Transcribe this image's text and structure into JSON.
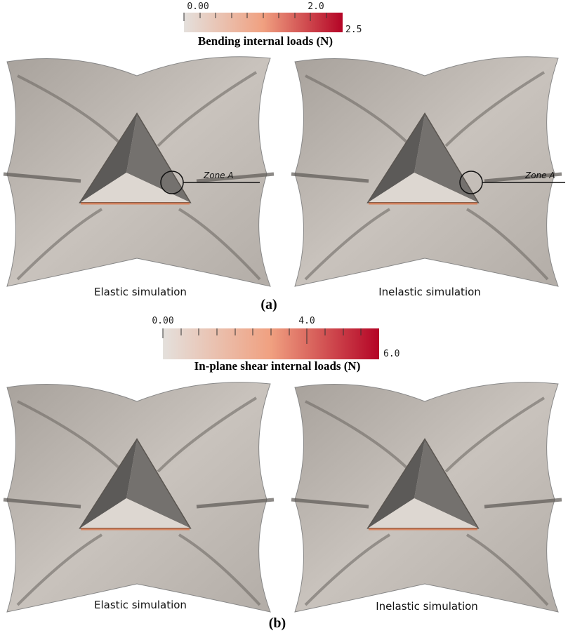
{
  "panels": [
    {
      "colorbar": {
        "ticks": [
          "0.00",
          "2.0",
          "2.5"
        ],
        "title": "Bending internal loads (N)"
      },
      "images": [
        {
          "caption": "Elastic simulation",
          "annotation": "Zone A"
        },
        {
          "caption": "Inelastic simulation",
          "annotation": "Zone A"
        }
      ],
      "label": "(a)"
    },
    {
      "colorbar": {
        "ticks": [
          "0.00",
          "4.0",
          "6.0"
        ],
        "title": "In-plane shear internal loads (N)"
      },
      "images": [
        {
          "caption": "Elastic simulation"
        },
        {
          "caption": "Inelastic simulation"
        }
      ],
      "label": "(b)"
    }
  ]
}
